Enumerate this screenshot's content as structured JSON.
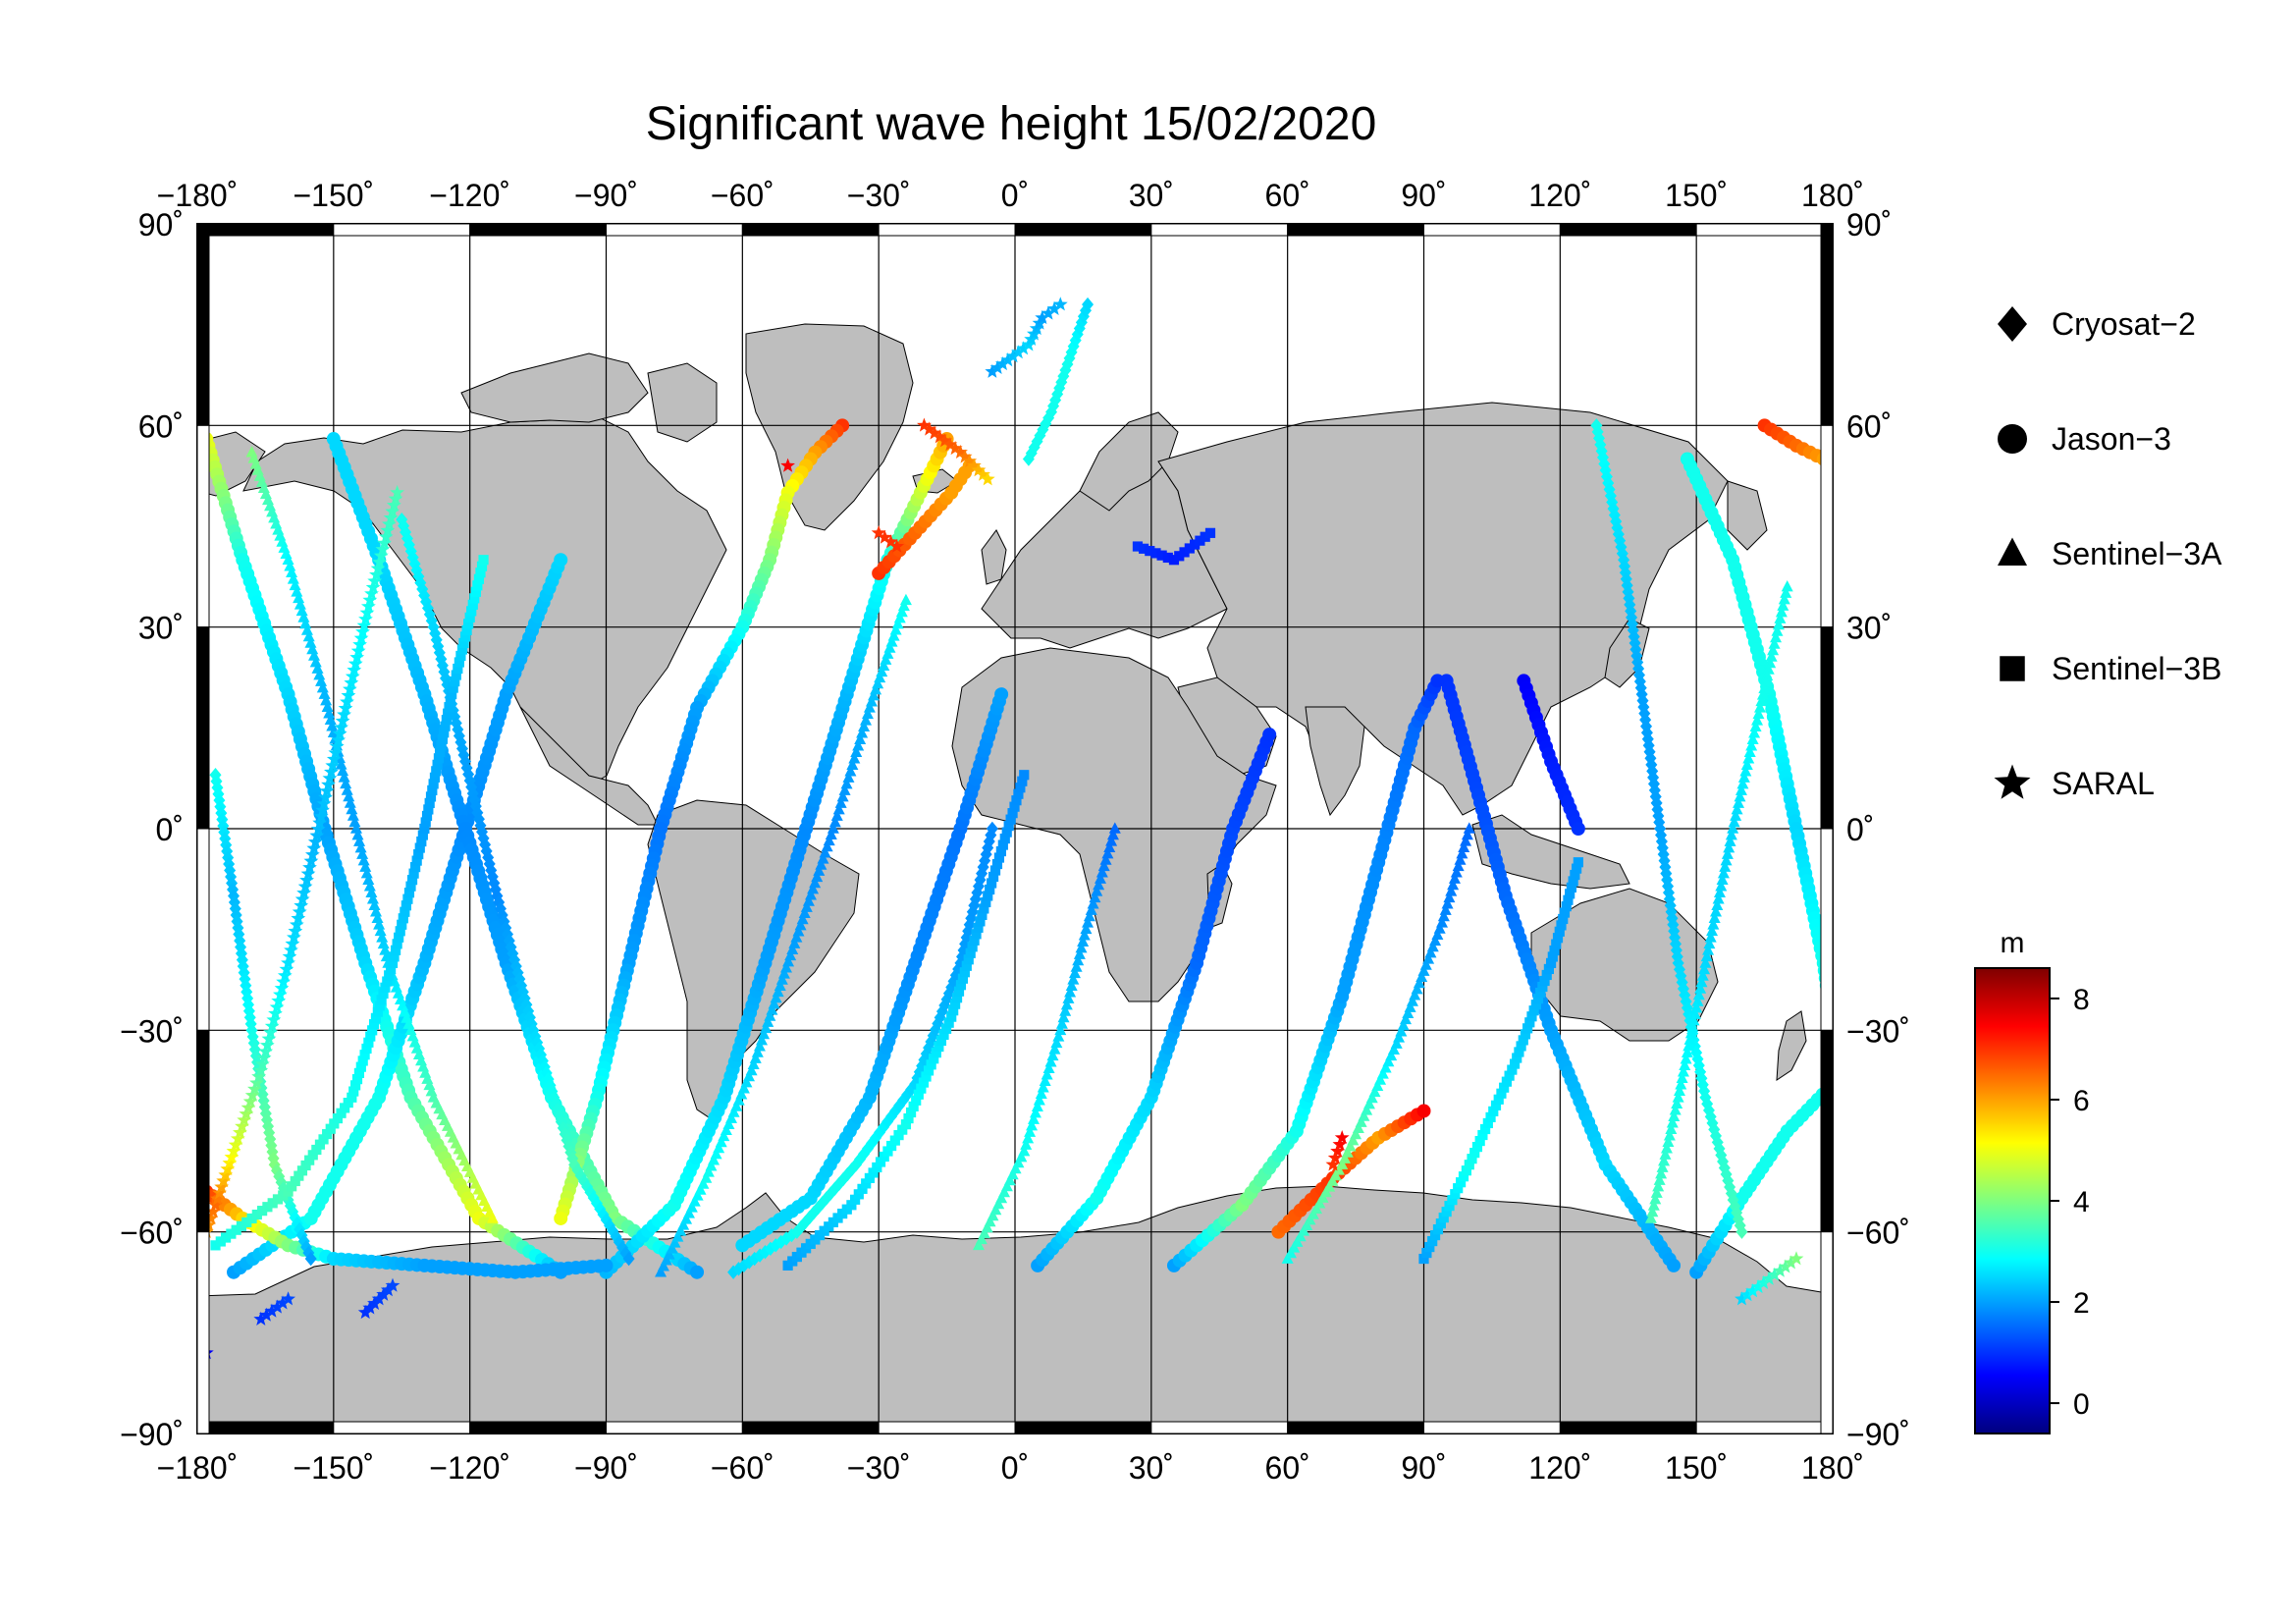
{
  "title": "Significant wave height 15/02/2020",
  "map": {
    "lon_range": [
      -180,
      180
    ],
    "lat_range": [
      -90,
      90
    ],
    "lon_ticks": [
      {
        "value": -180,
        "label": "−180˚"
      },
      {
        "value": -150,
        "label": "−150˚"
      },
      {
        "value": -120,
        "label": "−120˚"
      },
      {
        "value": -90,
        "label": "−90˚"
      },
      {
        "value": -60,
        "label": "−60˚"
      },
      {
        "value": -30,
        "label": "−30˚"
      },
      {
        "value": 0,
        "label": "0˚"
      },
      {
        "value": 30,
        "label": "30˚"
      },
      {
        "value": 60,
        "label": "60˚"
      },
      {
        "value": 90,
        "label": "90˚"
      },
      {
        "value": 120,
        "label": "120˚"
      },
      {
        "value": 150,
        "label": "150˚"
      },
      {
        "value": 180,
        "label": "180˚"
      }
    ],
    "lat_ticks": [
      {
        "value": 90,
        "label": "90˚"
      },
      {
        "value": 60,
        "label": "60˚"
      },
      {
        "value": 30,
        "label": "30˚"
      },
      {
        "value": 0,
        "label": "0˚"
      },
      {
        "value": -30,
        "label": "−30˚"
      },
      {
        "value": -60,
        "label": "−60˚"
      },
      {
        "value": -90,
        "label": "−90˚"
      }
    ],
    "land_color": "#bebebe",
    "ocean_color": "#ffffff"
  },
  "legend": [
    {
      "symbol": "diamond",
      "label": "Cryosat−2"
    },
    {
      "symbol": "circle",
      "label": "Jason−3"
    },
    {
      "symbol": "triangle",
      "label": "Sentinel−3A"
    },
    {
      "symbol": "square",
      "label": "Sentinel−3B"
    },
    {
      "symbol": "star",
      "label": "SARAL"
    }
  ],
  "colorbar": {
    "unit": "m",
    "min": -0.6,
    "max": 8.6,
    "ticks": [
      {
        "value": 0,
        "label": "0"
      },
      {
        "value": 2,
        "label": "2"
      },
      {
        "value": 4,
        "label": "4"
      },
      {
        "value": 6,
        "label": "6"
      },
      {
        "value": 8,
        "label": "8"
      }
    ],
    "colors": [
      "#00007f",
      "#0000ff",
      "#007fff",
      "#00ffff",
      "#7fff7f",
      "#ffff00",
      "#ff7f00",
      "#ff0000",
      "#7f0000"
    ]
  },
  "tracks": [
    {
      "sat": "circle",
      "pts": [
        [
          -178,
          58,
          5
        ],
        [
          -170,
          40,
          3
        ],
        [
          -160,
          20,
          2.5
        ],
        [
          -152,
          0,
          2
        ],
        [
          -143,
          -20,
          2.5
        ],
        [
          -133,
          -40,
          3.5
        ],
        [
          -118,
          -58,
          5
        ],
        [
          -100,
          -66,
          2
        ]
      ]
    },
    {
      "sat": "circle",
      "pts": [
        [
          -172,
          -66,
          2
        ],
        [
          -155,
          -58,
          3
        ],
        [
          -140,
          -40,
          3
        ],
        [
          -130,
          -20,
          2.2
        ],
        [
          -121,
          0,
          1.8
        ],
        [
          -112,
          20,
          2
        ],
        [
          -100,
          40,
          2.5
        ]
      ]
    },
    {
      "sat": "circle",
      "pts": [
        [
          -150,
          58,
          2.5
        ],
        [
          -140,
          40,
          2.5
        ],
        [
          -130,
          20,
          2.2
        ],
        [
          -121,
          0,
          1.8
        ],
        [
          -112,
          -20,
          2
        ],
        [
          -102,
          -40,
          3
        ],
        [
          -88,
          -58,
          4
        ],
        [
          -70,
          -66,
          2
        ]
      ]
    },
    {
      "sat": "circle",
      "pts": [
        [
          -90,
          -66,
          2.2
        ],
        [
          -75,
          -56,
          3
        ],
        [
          -64,
          -40,
          2.5
        ],
        [
          -55,
          -20,
          2
        ],
        [
          -46,
          0,
          1.8
        ],
        [
          -37,
          20,
          2.2
        ],
        [
          -28,
          40,
          3
        ],
        [
          -15,
          58,
          6
        ]
      ]
    },
    {
      "sat": "circle",
      "pts": [
        [
          -60,
          -62,
          2.5
        ],
        [
          -45,
          -55,
          2.5
        ],
        [
          -32,
          -40,
          2.2
        ],
        [
          -22,
          -20,
          1.8
        ],
        [
          -12,
          0,
          1.6
        ],
        [
          -3,
          20,
          2
        ]
      ]
    },
    {
      "sat": "circle",
      "pts": [
        [
          -30,
          38,
          7
        ],
        [
          -22,
          44,
          6.5
        ],
        [
          -14,
          50,
          6
        ],
        [
          -10,
          54,
          6
        ]
      ]
    },
    {
      "sat": "circle",
      "pts": [
        [
          -38,
          60,
          7
        ],
        [
          -44,
          56,
          6
        ],
        [
          -50,
          50,
          5
        ],
        [
          -54,
          40,
          4
        ],
        [
          -60,
          30,
          3
        ],
        [
          -70,
          18,
          2
        ],
        [
          -78,
          0,
          1.6
        ],
        [
          -85,
          -20,
          2
        ],
        [
          -92,
          -40,
          3
        ],
        [
          -100,
          -58,
          5
        ]
      ]
    },
    {
      "sat": "circle",
      "pts": [
        [
          5,
          -65,
          2
        ],
        [
          18,
          -55,
          3
        ],
        [
          30,
          -40,
          2.5
        ],
        [
          40,
          -20,
          1.5
        ],
        [
          48,
          0,
          1.2
        ],
        [
          56,
          14,
          1
        ]
      ]
    },
    {
      "sat": "circle",
      "pts": [
        [
          35,
          -65,
          2
        ],
        [
          50,
          -56,
          4
        ],
        [
          62,
          -45,
          3
        ],
        [
          72,
          -25,
          2
        ],
        [
          80,
          -5,
          1.8
        ],
        [
          88,
          15,
          1.5
        ],
        [
          93,
          22,
          1
        ]
      ]
    },
    {
      "sat": "circle",
      "pts": [
        [
          58,
          -60,
          6.5
        ],
        [
          70,
          -52,
          7
        ],
        [
          80,
          -46,
          6
        ],
        [
          90,
          -42,
          7.5
        ]
      ]
    },
    {
      "sat": "circle",
      "pts": [
        [
          95,
          22,
          1
        ],
        [
          102,
          5,
          1.2
        ],
        [
          108,
          -10,
          1.5
        ],
        [
          118,
          -30,
          2
        ],
        [
          130,
          -50,
          2.5
        ],
        [
          145,
          -65,
          2
        ]
      ]
    },
    {
      "sat": "circle",
      "pts": [
        [
          112,
          22,
          0.5
        ],
        [
          118,
          10,
          0.8
        ],
        [
          124,
          0,
          1
        ]
      ]
    },
    {
      "sat": "circle",
      "pts": [
        [
          148,
          55,
          3
        ],
        [
          158,
          40,
          3
        ],
        [
          166,
          20,
          3
        ],
        [
          172,
          0,
          2.5
        ],
        [
          178,
          -20,
          3
        ],
        [
          180,
          -30,
          3
        ]
      ]
    },
    {
      "sat": "circle",
      "pts": [
        [
          165,
          60,
          7
        ],
        [
          172,
          57,
          6.5
        ],
        [
          178,
          55,
          6
        ]
      ]
    },
    {
      "sat": "circle",
      "pts": [
        [
          150,
          -66,
          2
        ],
        [
          160,
          -55,
          3
        ],
        [
          170,
          -45,
          3
        ],
        [
          180,
          -38,
          3
        ]
      ]
    },
    {
      "sat": "circle",
      "pts": [
        [
          -178,
          -54,
          7
        ],
        [
          -170,
          -58,
          5.5
        ],
        [
          -160,
          -62,
          4
        ],
        [
          -150,
          -64,
          2.5
        ],
        [
          -130,
          -65,
          2
        ],
        [
          -110,
          -66,
          2
        ],
        [
          -90,
          -65,
          2
        ]
      ]
    },
    {
      "sat": "diamond",
      "pts": [
        [
          -176,
          8,
          3
        ],
        [
          -172,
          -10,
          2.2
        ],
        [
          -168,
          -30,
          3
        ],
        [
          -163,
          -50,
          4
        ],
        [
          -155,
          -64,
          2
        ]
      ]
    },
    {
      "sat": "diamond",
      "pts": [
        [
          -135,
          46,
          3
        ],
        [
          -128,
          30,
          2.5
        ],
        [
          -121,
          10,
          2
        ],
        [
          -114,
          -10,
          1.8
        ],
        [
          -106,
          -30,
          2.5
        ],
        [
          -97,
          -50,
          3.5
        ],
        [
          -85,
          -64,
          2
        ]
      ]
    },
    {
      "sat": "diamond",
      "pts": [
        [
          -62,
          -66,
          2.5
        ],
        [
          -48,
          -60,
          3
        ],
        [
          -35,
          -50,
          3
        ],
        [
          -22,
          -38,
          2.5
        ],
        [
          -12,
          -20,
          2
        ],
        [
          -5,
          0,
          1.8
        ]
      ]
    },
    {
      "sat": "diamond",
      "pts": [
        [
          3,
          55,
          3
        ],
        [
          8,
          62,
          3
        ],
        [
          12,
          70,
          3
        ],
        [
          16,
          78,
          2.5
        ]
      ]
    },
    {
      "sat": "diamond",
      "pts": [
        [
          128,
          60,
          3
        ],
        [
          134,
          40,
          2.5
        ],
        [
          138,
          20,
          2
        ],
        [
          142,
          0,
          2
        ],
        [
          146,
          -20,
          2.5
        ],
        [
          152,
          -40,
          3
        ],
        [
          160,
          -60,
          3.5
        ]
      ]
    },
    {
      "sat": "triangle",
      "pts": [
        [
          -168,
          56,
          4
        ],
        [
          -160,
          40,
          2.8
        ],
        [
          -152,
          20,
          2.2
        ],
        [
          -145,
          0,
          2
        ],
        [
          -138,
          -20,
          2.5
        ],
        [
          -128,
          -40,
          3.5
        ],
        [
          -115,
          -58,
          5
        ]
      ]
    },
    {
      "sat": "triangle",
      "pts": [
        [
          -78,
          -66,
          2
        ],
        [
          -68,
          -52,
          3
        ],
        [
          -58,
          -36,
          2.5
        ],
        [
          -49,
          -18,
          2
        ],
        [
          -40,
          0,
          1.8
        ],
        [
          -32,
          18,
          2.2
        ],
        [
          -24,
          34,
          3
        ]
      ]
    },
    {
      "sat": "triangle",
      "pts": [
        [
          -8,
          -62,
          3.5
        ],
        [
          2,
          -48,
          3
        ],
        [
          10,
          -30,
          2.5
        ],
        [
          16,
          -14,
          2
        ],
        [
          22,
          0,
          1.5
        ]
      ]
    },
    {
      "sat": "triangle",
      "pts": [
        [
          60,
          -64,
          3
        ],
        [
          72,
          -50,
          4
        ],
        [
          84,
          -32,
          2.5
        ],
        [
          94,
          -14,
          1.8
        ],
        [
          100,
          0,
          1.5
        ]
      ]
    },
    {
      "sat": "triangle",
      "pts": [
        [
          170,
          36,
          3
        ],
        [
          164,
          18,
          3
        ],
        [
          158,
          0,
          2.5
        ],
        [
          152,
          -20,
          2.5
        ],
        [
          146,
          -40,
          3
        ],
        [
          140,
          -58,
          3.5
        ]
      ]
    },
    {
      "sat": "square",
      "pts": [
        [
          -176,
          -62,
          3
        ],
        [
          -160,
          -54,
          3.5
        ],
        [
          -146,
          -40,
          3
        ],
        [
          -137,
          -20,
          2.5
        ],
        [
          -130,
          0,
          2
        ],
        [
          -124,
          20,
          2.2
        ],
        [
          -117,
          40,
          3
        ]
      ]
    },
    {
      "sat": "square",
      "pts": [
        [
          -50,
          -65,
          2
        ],
        [
          -36,
          -56,
          2.5
        ],
        [
          -24,
          -44,
          3
        ],
        [
          -14,
          -28,
          2.5
        ],
        [
          -6,
          -10,
          2
        ],
        [
          2,
          8,
          1.8
        ]
      ]
    },
    {
      "sat": "square",
      "pts": [
        [
          90,
          -64,
          2
        ],
        [
          100,
          -50,
          3
        ],
        [
          110,
          -35,
          2.5
        ],
        [
          118,
          -20,
          2
        ],
        [
          124,
          -5,
          2
        ]
      ]
    },
    {
      "sat": "square",
      "pts": [
        [
          27,
          42,
          1
        ],
        [
          35,
          40,
          0.8
        ],
        [
          43,
          44,
          1
        ]
      ]
    },
    {
      "sat": "star",
      "pts": [
        [
          -178,
          -60,
          6
        ],
        [
          -176,
          -56,
          6.5
        ],
        [
          -172,
          -48,
          5
        ],
        [
          -166,
          -36,
          3.5
        ],
        [
          -160,
          -20,
          2.6
        ],
        [
          -154,
          -2,
          2.2
        ],
        [
          -148,
          16,
          2.5
        ],
        [
          -142,
          34,
          3
        ],
        [
          -136,
          50,
          3.5
        ]
      ]
    },
    {
      "sat": "star",
      "pts": [
        [
          -166,
          -73,
          1
        ],
        [
          -160,
          -70,
          1.2
        ]
      ]
    },
    {
      "sat": "star",
      "pts": [
        [
          -143,
          -72,
          1
        ],
        [
          -137,
          -68,
          1.2
        ]
      ]
    },
    {
      "sat": "star",
      "pts": [
        [
          -178,
          -78,
          0.5
        ]
      ]
    },
    {
      "sat": "star",
      "pts": [
        [
          -20,
          60,
          7
        ],
        [
          -12,
          56,
          6.5
        ],
        [
          -6,
          52,
          5.5
        ]
      ]
    },
    {
      "sat": "star",
      "pts": [
        [
          -30,
          44,
          7
        ],
        [
          -26,
          42,
          7
        ]
      ]
    },
    {
      "sat": "star",
      "pts": [
        [
          -50,
          54,
          7.5
        ]
      ]
    },
    {
      "sat": "star",
      "pts": [
        [
          72,
          -46,
          7.5
        ],
        [
          70,
          -50,
          7
        ]
      ]
    },
    {
      "sat": "star",
      "pts": [
        [
          -5,
          68,
          2
        ],
        [
          3,
          72,
          2.5
        ],
        [
          6,
          76,
          2
        ],
        [
          10,
          78,
          2.2
        ]
      ]
    },
    {
      "sat": "star",
      "pts": [
        [
          160,
          -70,
          2.5
        ],
        [
          172,
          -64,
          4
        ]
      ]
    }
  ]
}
